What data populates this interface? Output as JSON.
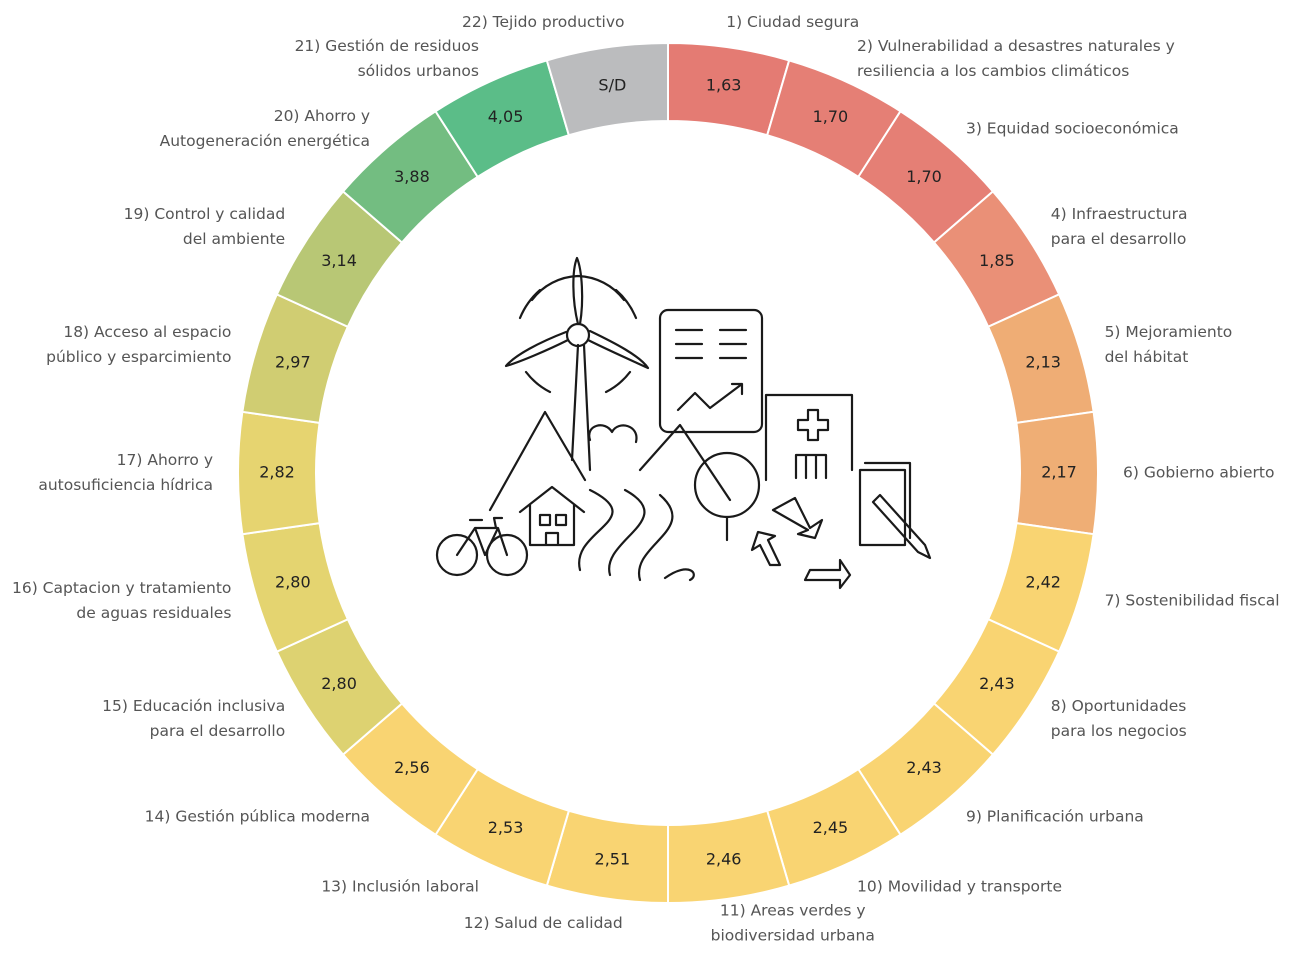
{
  "chart_data": {
    "type": "ring",
    "categories": [
      [
        "1) Ciudad segura"
      ],
      [
        "2) Vulnerabilidad a desastres naturales y",
        "resiliencia a los cambios climáticos"
      ],
      [
        "3) Equidad socioeconómica"
      ],
      [
        "4) Infraestructura",
        "para el desarrollo"
      ],
      [
        "5) Mejoramiento",
        "del hábitat"
      ],
      [
        "6) Gobierno abierto"
      ],
      [
        "7) Sostenibilidad fiscal"
      ],
      [
        "8) Oportunidades",
        "para los negocios"
      ],
      [
        "9) Planificación urbana"
      ],
      [
        "10) Movilidad y transporte"
      ],
      [
        "11) Areas verdes y",
        "biodiversidad urbana"
      ],
      [
        "12) Salud de calidad"
      ],
      [
        "13) Inclusión laboral"
      ],
      [
        "14) Gestión pública moderna"
      ],
      [
        "15) Educación inclusiva",
        "para el desarrollo"
      ],
      [
        "16) Captacion y tratamiento",
        "de aguas residuales"
      ],
      [
        "17) Ahorro y",
        "autosuficiencia hídrica"
      ],
      [
        "18) Acceso al espacio",
        "público y esparcimiento"
      ],
      [
        "19) Control y calidad",
        "del ambiente"
      ],
      [
        "20) Ahorro y",
        "Autogeneración energética"
      ],
      [
        "21) Gestión de residuos",
        "sólidos urbanos"
      ],
      [
        "22) Tejido productivo"
      ]
    ],
    "values": [
      1.63,
      1.7,
      1.7,
      1.85,
      2.13,
      2.17,
      2.42,
      2.43,
      2.43,
      2.45,
      2.46,
      2.51,
      2.53,
      2.56,
      2.8,
      2.8,
      2.82,
      2.97,
      3.14,
      3.88,
      4.05,
      null
    ],
    "value_labels": [
      "1,63",
      "1,70",
      "1,70",
      "1,85",
      "2,13",
      "2,17",
      "2,42",
      "2,43",
      "2,43",
      "2,45",
      "2,46",
      "2,51",
      "2,53",
      "2,56",
      "2,80",
      "2,80",
      "2,82",
      "2,97",
      "3,14",
      "3,88",
      "4,05",
      "S/D"
    ],
    "colors": [
      "#e47b73",
      "#e57f75",
      "#e57f75",
      "#ea9077",
      "#efad75",
      "#efae75",
      "#f9d472",
      "#f9d472",
      "#f9d472",
      "#f9d472",
      "#f9d472",
      "#f9d472",
      "#f9d472",
      "#f9d472",
      "#ddd271",
      "#e4d470",
      "#e6d470",
      "#d0cd72",
      "#b8c775",
      "#73bd81",
      "#5bbd88",
      "#bbbcbe"
    ]
  }
}
